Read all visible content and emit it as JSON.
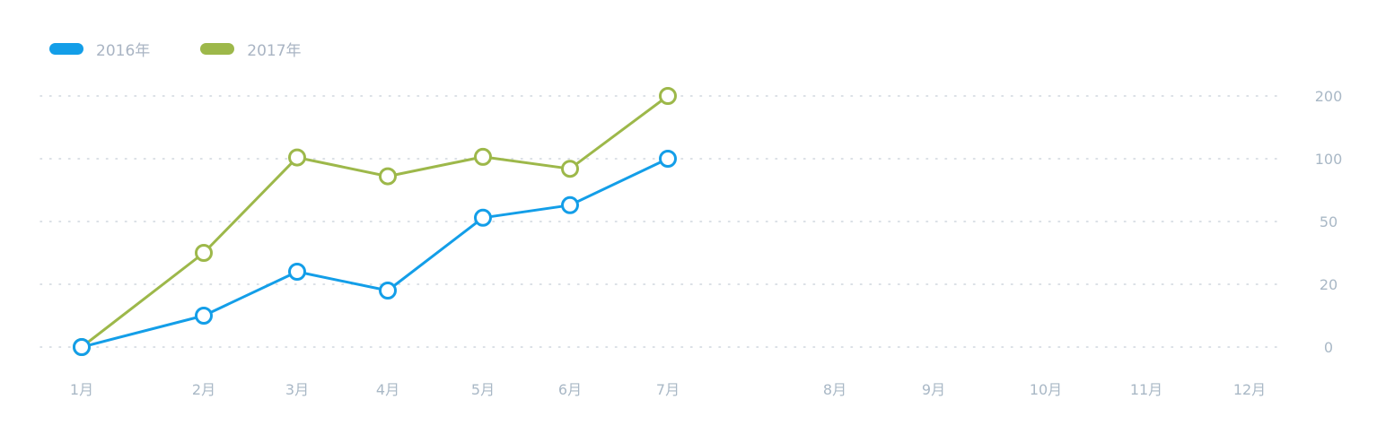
{
  "chart_data": {
    "type": "line",
    "categories": [
      "1月",
      "2月",
      "3月",
      "4月",
      "5月",
      "6月",
      "7月",
      "8月",
      "9月",
      "10月",
      "11月",
      "12月"
    ],
    "y_ticks": [
      "0",
      "20",
      "50",
      "100",
      "200"
    ],
    "y_tick_values": [
      0,
      20,
      50,
      100,
      200
    ],
    "y_axis_position": "right",
    "grid": "dotted-horizontal",
    "legend_position": "top-left",
    "series": [
      {
        "name": "2016年",
        "color": "#139ee8",
        "values": [
          0,
          10,
          26,
          18,
          53,
          63,
          100,
          null,
          null,
          null,
          null,
          null
        ]
      },
      {
        "name": "2017年",
        "color": "#9db84a",
        "values": [
          0,
          35,
          102,
          86,
          103,
          92,
          200,
          null,
          null,
          null,
          null,
          null
        ]
      }
    ]
  }
}
